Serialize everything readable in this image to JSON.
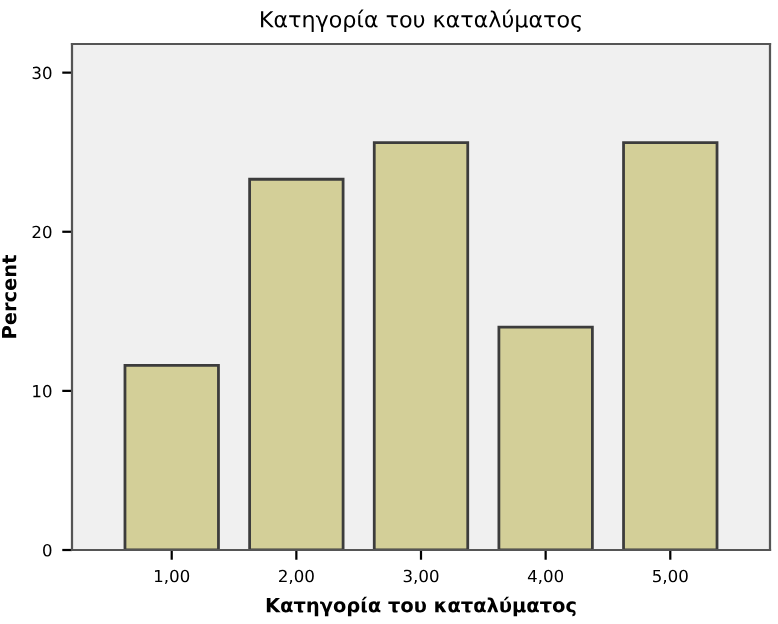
{
  "chart_data": {
    "type": "bar",
    "title": "Κατηγορία του καταλύματος",
    "xlabel": "Κατηγορία του καταλύματος",
    "ylabel": "Percent",
    "categories": [
      "1,00",
      "2,00",
      "3,00",
      "4,00",
      "5,00"
    ],
    "values": [
      11.6,
      23.3,
      25.6,
      14.0,
      25.6
    ],
    "color": "#d3cf98",
    "ylim": [
      0,
      31.8
    ],
    "yticks": [
      0,
      10,
      20,
      30
    ],
    "grid": false
  }
}
